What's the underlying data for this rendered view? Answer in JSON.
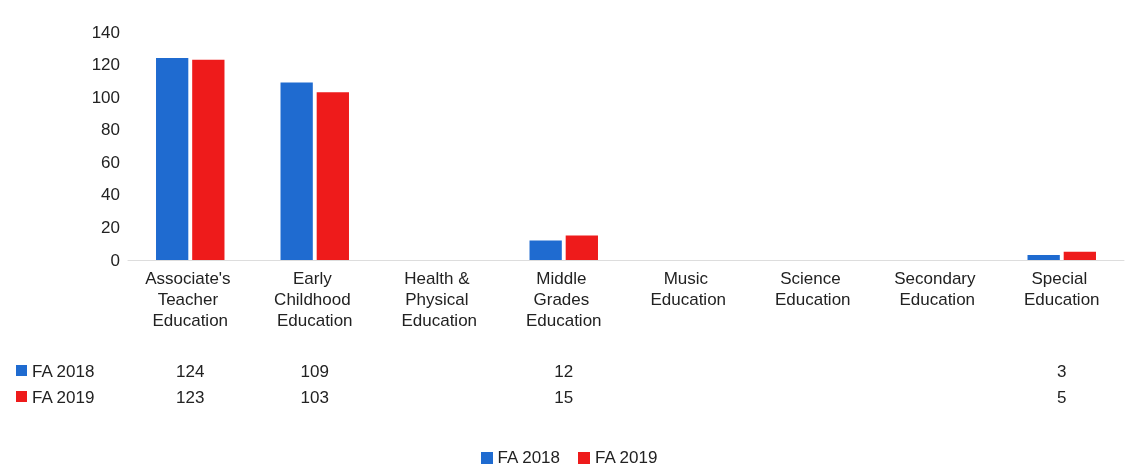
{
  "chart_data": {
    "type": "bar",
    "categories": [
      "Associate's Teacher Education",
      "Early Childhood Education",
      "Health & Physical Education",
      "Middle Grades Education",
      "Music Education",
      "Science Education",
      "Secondary Education",
      "Special Education"
    ],
    "series": [
      {
        "name": "FA 2018",
        "color": "#1f6bd0",
        "values": [
          124,
          109,
          null,
          12,
          null,
          null,
          null,
          3
        ]
      },
      {
        "name": "FA 2019",
        "color": "#ee1b1b",
        "values": [
          123,
          103,
          null,
          15,
          null,
          null,
          null,
          5
        ]
      }
    ],
    "ylim": [
      0,
      140
    ],
    "yticks": [
      0,
      20,
      40,
      60,
      80,
      100,
      120,
      140
    ],
    "grid": false,
    "legend": "bottom",
    "data_labels": true
  }
}
